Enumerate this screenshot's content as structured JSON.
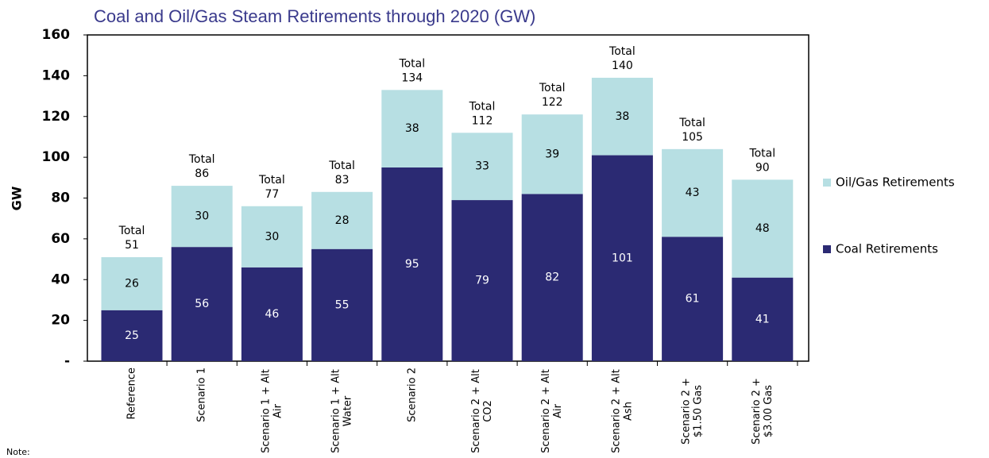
{
  "chart_data": {
    "type": "stacked_bar",
    "title": "Coal and Oil/Gas Steam Retirements through 2020 (GW)",
    "ylabel": "GW",
    "note": "Note:",
    "categories": [
      [
        "Reference"
      ],
      [
        "Scenario 1"
      ],
      [
        "Scenario 1 + Alt",
        "Air"
      ],
      [
        "Scenario 1 + Alt",
        "Water"
      ],
      [
        "Scenario 2"
      ],
      [
        "Scenario 2 + Alt",
        "CO2"
      ],
      [
        "Scenario 2 + Alt",
        "Air"
      ],
      [
        "Scenario 2 + Alt",
        "Ash"
      ],
      [
        "Scenario 2 +",
        "$1.50 Gas"
      ],
      [
        "Scenario 2 +",
        "$3.00 Gas"
      ]
    ],
    "series": [
      {
        "name": "Coal Retirements",
        "color": "#2b2a73",
        "label_color": "#ffffff",
        "values": [
          25,
          56,
          46,
          55,
          95,
          79,
          82,
          101,
          61,
          41
        ]
      },
      {
        "name": "Oil/Gas Retirements",
        "color": "#b7dfe3",
        "label_color": "#000000",
        "values": [
          26,
          30,
          30,
          28,
          38,
          33,
          39,
          38,
          43,
          48
        ]
      }
    ],
    "total_label": "Total",
    "totals": [
      51,
      86,
      77,
      83,
      134,
      112,
      122,
      140,
      105,
      90
    ],
    "ylim": [
      0,
      160
    ],
    "yticks": [
      {
        "value": 0,
        "label": "-"
      },
      20,
      40,
      60,
      80,
      100,
      120,
      140,
      160
    ],
    "legend": "right"
  }
}
